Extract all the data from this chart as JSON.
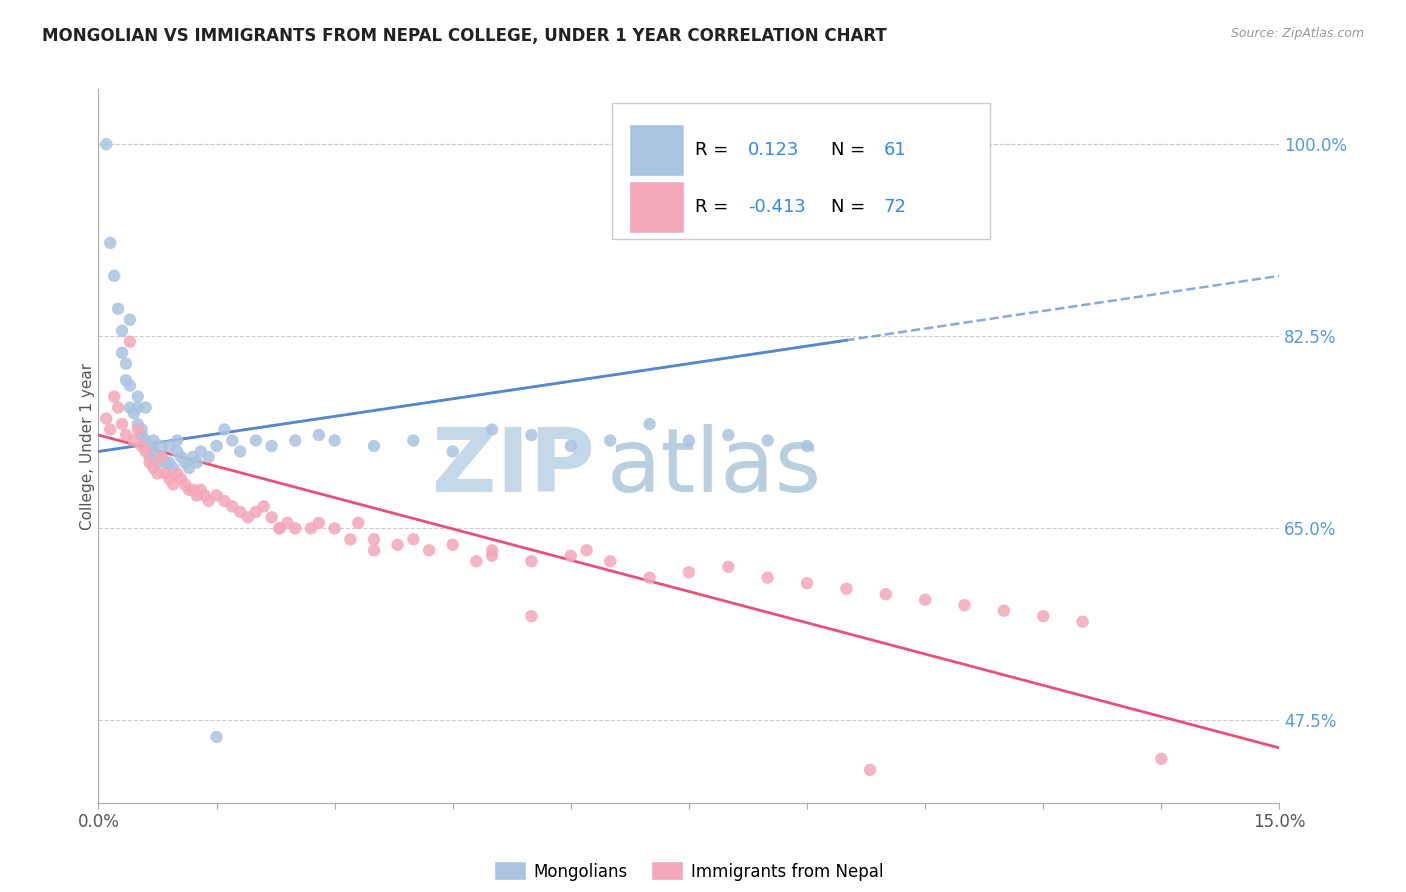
{
  "title": "MONGOLIAN VS IMMIGRANTS FROM NEPAL COLLEGE, UNDER 1 YEAR CORRELATION CHART",
  "source_text": "Source: ZipAtlas.com",
  "ylabel": "College, Under 1 year",
  "xlim": [
    0.0,
    15.0
  ],
  "ylim": [
    40.0,
    105.0
  ],
  "x_ticks": [
    0.0,
    1.5,
    3.0,
    4.5,
    6.0,
    7.5,
    9.0,
    10.5,
    12.0,
    13.5,
    15.0
  ],
  "x_tick_labels": [
    "0.0%",
    "",
    "",
    "",
    "",
    "",
    "",
    "",
    "",
    "",
    "15.0%"
  ],
  "y_ticks_right": [
    47.5,
    65.0,
    82.5,
    100.0
  ],
  "y_tick_labels_right": [
    "47.5%",
    "65.0%",
    "82.5%",
    "100.0%"
  ],
  "mongolian_color": "#a8c4e0",
  "nepal_color": "#f4a7b9",
  "mongolian_line_color": "#5588cc",
  "nepal_line_color": "#e8507a",
  "watermark_zip": "ZIP",
  "watermark_atlas": "atlas",
  "watermark_color_zip": "#c8d8ea",
  "watermark_color_atlas": "#b8cfe0",
  "background_color": "#ffffff",
  "grid_color": "#cccccc",
  "title_color": "#222222",
  "right_label_color": "#5599dd",
  "mongolian_R": 0.123,
  "nepal_R": -0.413,
  "mongolian_N": 61,
  "nepal_N": 72,
  "mongolian_scatter_x": [
    0.1,
    0.15,
    0.2,
    0.25,
    0.3,
    0.3,
    0.35,
    0.35,
    0.4,
    0.4,
    0.4,
    0.45,
    0.5,
    0.5,
    0.5,
    0.55,
    0.55,
    0.6,
    0.6,
    0.65,
    0.65,
    0.7,
    0.7,
    0.75,
    0.8,
    0.8,
    0.85,
    0.9,
    0.9,
    0.95,
    1.0,
    1.0,
    1.05,
    1.1,
    1.15,
    1.2,
    1.25,
    1.3,
    1.4,
    1.5,
    1.6,
    1.7,
    1.8,
    2.0,
    2.2,
    2.5,
    2.8,
    3.0,
    3.5,
    4.0,
    4.5,
    5.0,
    5.5,
    6.0,
    6.5,
    7.0,
    7.5,
    8.0,
    8.5,
    9.0,
    1.5
  ],
  "mongolian_scatter_y": [
    100.0,
    91.0,
    88.0,
    85.0,
    83.0,
    81.0,
    80.0,
    78.5,
    84.0,
    78.0,
    76.0,
    75.5,
    77.0,
    76.0,
    74.5,
    74.0,
    73.5,
    76.0,
    73.0,
    72.5,
    71.5,
    73.0,
    72.0,
    71.0,
    72.5,
    71.5,
    71.0,
    72.5,
    71.0,
    70.5,
    73.0,
    72.0,
    71.5,
    71.0,
    70.5,
    71.5,
    71.0,
    72.0,
    71.5,
    72.5,
    74.0,
    73.0,
    72.0,
    73.0,
    72.5,
    73.0,
    73.5,
    73.0,
    72.5,
    73.0,
    72.0,
    74.0,
    73.5,
    72.5,
    73.0,
    74.5,
    73.0,
    73.5,
    73.0,
    72.5,
    46.0
  ],
  "nepal_scatter_x": [
    0.1,
    0.15,
    0.2,
    0.25,
    0.3,
    0.35,
    0.4,
    0.45,
    0.5,
    0.55,
    0.6,
    0.65,
    0.7,
    0.75,
    0.8,
    0.85,
    0.9,
    0.95,
    1.0,
    1.05,
    1.1,
    1.15,
    1.2,
    1.25,
    1.3,
    1.35,
    1.4,
    1.5,
    1.6,
    1.7,
    1.8,
    1.9,
    2.0,
    2.1,
    2.2,
    2.3,
    2.4,
    2.5,
    2.7,
    2.8,
    3.0,
    3.2,
    3.3,
    3.5,
    3.8,
    4.0,
    4.2,
    4.5,
    5.0,
    5.5,
    6.0,
    6.2,
    6.5,
    7.0,
    7.5,
    8.0,
    8.5,
    9.0,
    9.5,
    10.0,
    10.5,
    11.0,
    11.5,
    12.0,
    12.5,
    13.5,
    4.8,
    2.3,
    3.5,
    5.0,
    5.5,
    9.8
  ],
  "nepal_scatter_y": [
    75.0,
    74.0,
    77.0,
    76.0,
    74.5,
    73.5,
    82.0,
    73.0,
    74.0,
    72.5,
    72.0,
    71.0,
    70.5,
    70.0,
    71.5,
    70.0,
    69.5,
    69.0,
    70.0,
    69.5,
    69.0,
    68.5,
    68.5,
    68.0,
    68.5,
    68.0,
    67.5,
    68.0,
    67.5,
    67.0,
    66.5,
    66.0,
    66.5,
    67.0,
    66.0,
    65.0,
    65.5,
    65.0,
    65.0,
    65.5,
    65.0,
    64.0,
    65.5,
    64.0,
    63.5,
    64.0,
    63.0,
    63.5,
    63.0,
    62.0,
    62.5,
    63.0,
    62.0,
    60.5,
    61.0,
    61.5,
    60.5,
    60.0,
    59.5,
    59.0,
    58.5,
    58.0,
    57.5,
    57.0,
    56.5,
    44.0,
    62.0,
    65.0,
    63.0,
    62.5,
    57.0,
    43.0
  ]
}
